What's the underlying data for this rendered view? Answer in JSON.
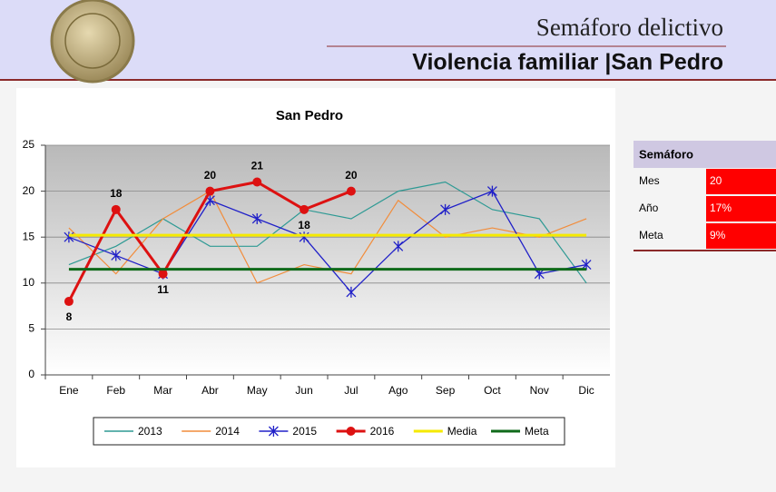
{
  "header": {
    "title": "Semáforo delictivo",
    "subtitle": "Violencia familiar |San Pedro"
  },
  "chart_data": {
    "type": "line",
    "title": "San Pedro",
    "categories": [
      "Ene",
      "Feb",
      "Mar",
      "Abr",
      "May",
      "Jun",
      "Jul",
      "Ago",
      "Sep",
      "Oct",
      "Nov",
      "Dic"
    ],
    "series": [
      {
        "name": "2013",
        "color": "#2e9a94",
        "values": [
          12,
          14,
          17,
          14,
          14,
          18,
          17,
          20,
          21,
          18,
          17,
          10
        ]
      },
      {
        "name": "2014",
        "color": "#f28c3a",
        "values": [
          16,
          11,
          17,
          20,
          10,
          12,
          11,
          19,
          15,
          16,
          15,
          17
        ]
      },
      {
        "name": "2015",
        "color": "#2020c8",
        "marker": "asterisk",
        "values": [
          15,
          13,
          11,
          19,
          17,
          15,
          9,
          14,
          18,
          20,
          11,
          12
        ]
      },
      {
        "name": "2016",
        "color": "#dd1111",
        "marker": "circle",
        "data_labels": true,
        "values": [
          8,
          18,
          11,
          20,
          21,
          18,
          20,
          null,
          null,
          null,
          null,
          null
        ]
      },
      {
        "name": "Media",
        "color": "#f5ea00",
        "values": [
          15.2,
          15.2,
          15.2,
          15.2,
          15.2,
          15.2,
          15.2,
          15.2,
          15.2,
          15.2,
          15.2,
          15.2
        ]
      },
      {
        "name": "Meta",
        "color": "#0f6a1a",
        "values": [
          11.5,
          11.5,
          11.5,
          11.5,
          11.5,
          11.5,
          11.5,
          11.5,
          11.5,
          11.5,
          11.5,
          11.5
        ]
      }
    ],
    "ylim": [
      0,
      25
    ],
    "yticks": [
      0,
      5,
      10,
      15,
      20,
      25
    ],
    "grid": true,
    "legend": "bottom"
  },
  "semaforo": {
    "header": "Semáforo",
    "rows": [
      [
        "Mes",
        "20"
      ],
      [
        "Año",
        "17%"
      ],
      [
        "Meta",
        "9%"
      ]
    ]
  }
}
